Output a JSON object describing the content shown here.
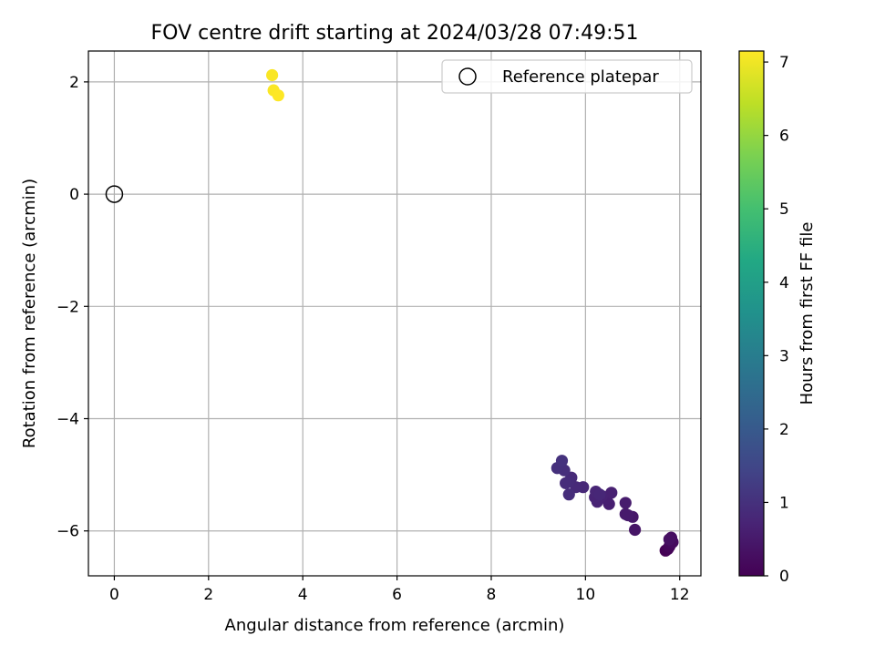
{
  "chart_data": {
    "type": "scatter",
    "title": "FOV centre drift starting at 2024/03/28 07:49:51",
    "xlabel": "Angular distance from reference (arcmin)",
    "ylabel": "Rotation from reference (arcmin)",
    "xlim": [
      -0.55,
      12.45
    ],
    "ylim": [
      -6.8,
      2.55
    ],
    "xticks": [
      0,
      2,
      4,
      6,
      8,
      10,
      12
    ],
    "yticks": [
      2,
      0,
      -2,
      -4,
      -6
    ],
    "grid": true,
    "colormap": "viridis",
    "colorbar": {
      "label": "Hours from first FF file",
      "range": [
        0,
        7.15
      ],
      "ticks": [
        0,
        1,
        2,
        3,
        4,
        5,
        6,
        7
      ]
    },
    "legend": {
      "position": "top-right",
      "entries": [
        {
          "label": "Reference platepar",
          "marker": "open-circle"
        }
      ]
    },
    "reference_point": {
      "x": 0,
      "y": 0
    },
    "points": [
      {
        "x": 11.7,
        "y": -6.35,
        "h": 0.0
      },
      {
        "x": 11.75,
        "y": -6.32,
        "h": 0.05
      },
      {
        "x": 11.78,
        "y": -6.28,
        "h": 0.1
      },
      {
        "x": 11.8,
        "y": -6.22,
        "h": 0.15
      },
      {
        "x": 11.85,
        "y": -6.2,
        "h": 0.2
      },
      {
        "x": 11.82,
        "y": -6.12,
        "h": 0.25
      },
      {
        "x": 11.78,
        "y": -6.15,
        "h": 0.3
      },
      {
        "x": 11.05,
        "y": -5.98,
        "h": 0.4
      },
      {
        "x": 11.0,
        "y": -5.75,
        "h": 0.45
      },
      {
        "x": 10.85,
        "y": -5.7,
        "h": 0.5
      },
      {
        "x": 10.9,
        "y": -5.72,
        "h": 0.52
      },
      {
        "x": 10.85,
        "y": -5.5,
        "h": 0.55
      },
      {
        "x": 10.5,
        "y": -5.52,
        "h": 0.6
      },
      {
        "x": 10.45,
        "y": -5.42,
        "h": 0.62
      },
      {
        "x": 10.55,
        "y": -5.32,
        "h": 0.65
      },
      {
        "x": 10.35,
        "y": -5.38,
        "h": 0.68
      },
      {
        "x": 10.25,
        "y": -5.48,
        "h": 0.7
      },
      {
        "x": 10.2,
        "y": -5.4,
        "h": 0.72
      },
      {
        "x": 10.22,
        "y": -5.3,
        "h": 0.75
      },
      {
        "x": 10.3,
        "y": -5.35,
        "h": 0.78
      },
      {
        "x": 9.95,
        "y": -5.22,
        "h": 0.8
      },
      {
        "x": 9.8,
        "y": -5.22,
        "h": 0.82
      },
      {
        "x": 9.7,
        "y": -5.05,
        "h": 0.85
      },
      {
        "x": 9.65,
        "y": -5.12,
        "h": 0.88
      },
      {
        "x": 9.58,
        "y": -5.15,
        "h": 0.9
      },
      {
        "x": 9.65,
        "y": -5.35,
        "h": 0.92
      },
      {
        "x": 9.55,
        "y": -4.92,
        "h": 0.95
      },
      {
        "x": 9.4,
        "y": -4.88,
        "h": 0.98
      },
      {
        "x": 9.5,
        "y": -4.75,
        "h": 1.02
      },
      {
        "x": 3.35,
        "y": 2.12,
        "h": 7.1
      },
      {
        "x": 3.38,
        "y": 1.85,
        "h": 7.12
      },
      {
        "x": 3.48,
        "y": 1.76,
        "h": 7.15
      }
    ]
  }
}
